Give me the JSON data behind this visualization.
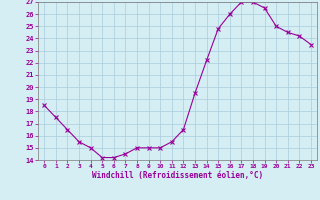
{
  "hours": [
    0,
    1,
    2,
    3,
    4,
    5,
    6,
    7,
    8,
    9,
    10,
    11,
    12,
    13,
    14,
    15,
    16,
    17,
    18,
    19,
    20,
    21,
    22,
    23
  ],
  "windchill": [
    18.5,
    17.5,
    16.5,
    15.5,
    15.0,
    14.2,
    14.2,
    14.5,
    15.0,
    15.0,
    15.0,
    15.5,
    16.5,
    19.5,
    22.2,
    24.8,
    26.0,
    27.0,
    27.0,
    26.5,
    25.0,
    24.5,
    24.2,
    23.5
  ],
  "ylim": [
    14,
    27
  ],
  "yticks": [
    14,
    15,
    16,
    17,
    18,
    19,
    20,
    21,
    22,
    23,
    24,
    25,
    26,
    27
  ],
  "xticks": [
    0,
    1,
    2,
    3,
    4,
    5,
    6,
    7,
    8,
    9,
    10,
    11,
    12,
    13,
    14,
    15,
    16,
    17,
    18,
    19,
    20,
    21,
    22,
    23
  ],
  "line_color": "#990099",
  "marker_color": "#990099",
  "bg_color": "#d4eef4",
  "grid_color": "#aaccdd",
  "xlabel": "Windchill (Refroidissement éolien,°C)",
  "title": ""
}
